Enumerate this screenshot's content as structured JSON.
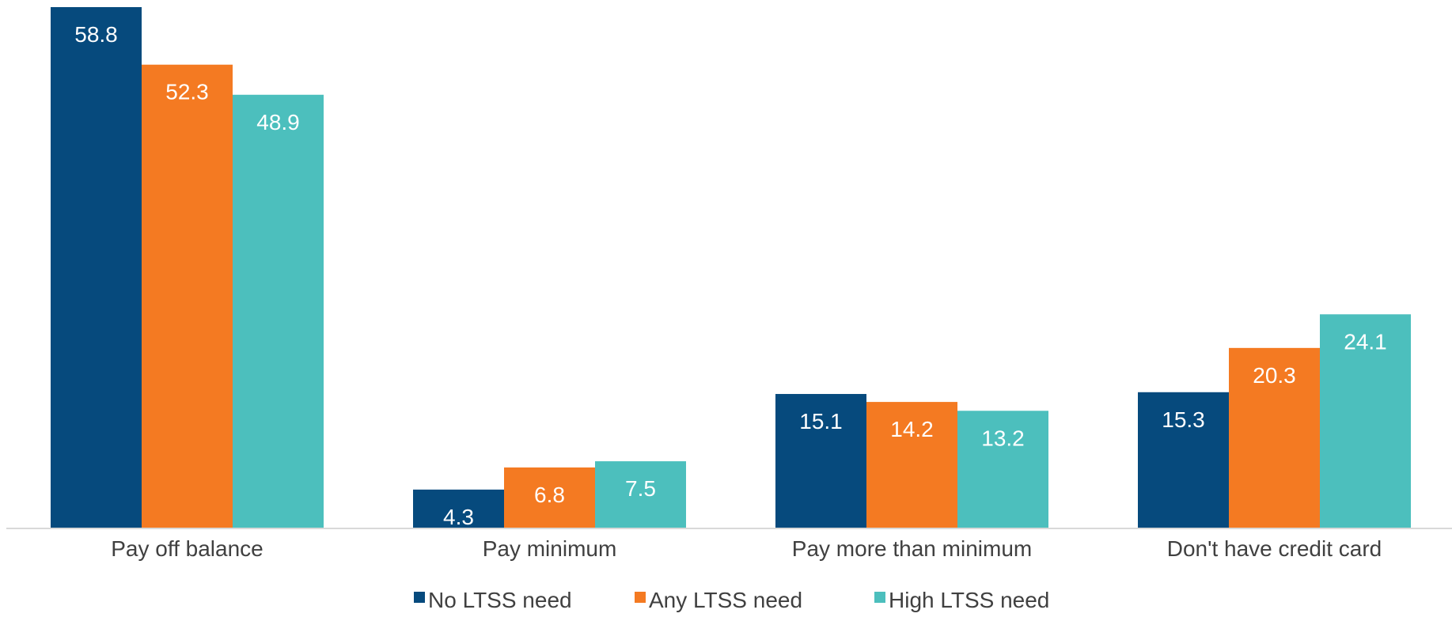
{
  "chart_data": {
    "type": "bar",
    "title": "",
    "xlabel": "",
    "ylabel": "",
    "categories": [
      "Pay off balance",
      "Pay minimum",
      "Pay more than minimum",
      "Don't have credit card"
    ],
    "series": [
      {
        "name": "No LTSS need",
        "values": [
          58.8,
          4.3,
          15.1,
          15.3
        ],
        "color": "#064a7d"
      },
      {
        "name": "Any LTSS need",
        "values": [
          52.3,
          6.8,
          14.2,
          20.3
        ],
        "color": "#f47a22"
      },
      {
        "name": "High LTSS need",
        "values": [
          48.9,
          7.5,
          13.2,
          24.1
        ],
        "color": "#4cbfbd"
      }
    ],
    "ylim": [
      0,
      58.8
    ],
    "grid": false,
    "data_labels": true,
    "legend_position": "bottom-center"
  }
}
